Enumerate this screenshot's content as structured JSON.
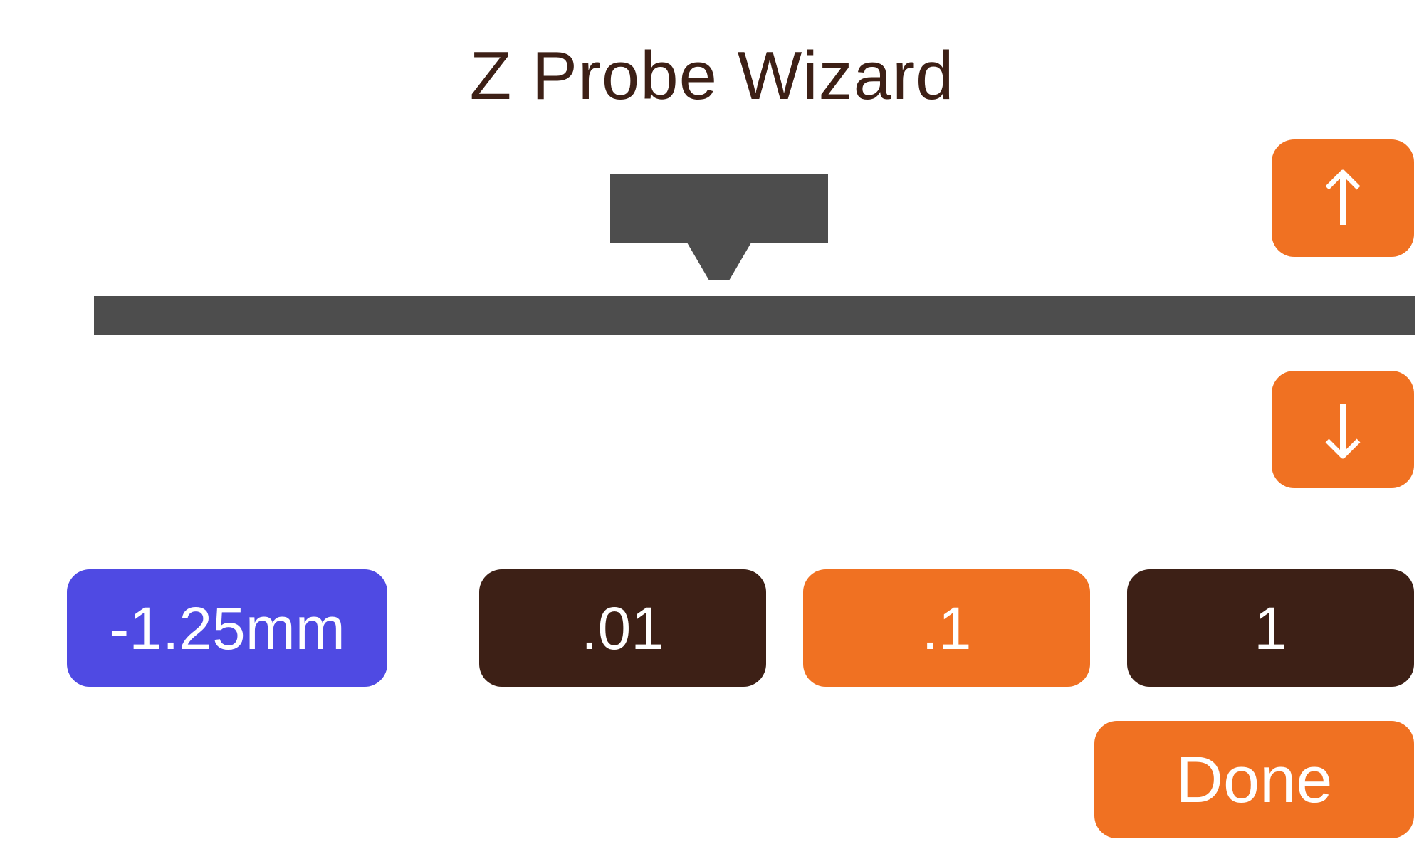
{
  "title": "Z Probe Wizard",
  "controls": {
    "up_icon": "arrow-up-icon",
    "down_icon": "arrow-down-icon"
  },
  "offset": {
    "value": "-1.25mm"
  },
  "steps": [
    {
      "label": ".01",
      "selected": false
    },
    {
      "label": ".1",
      "selected": true
    },
    {
      "label": "1",
      "selected": false
    }
  ],
  "done_label": "Done",
  "colors": {
    "accent": "#f07122",
    "dark": "#3d2016",
    "offset_blue": "#4f4ae3",
    "diagram_gray": "#4d4d4d",
    "background": "#ffffff"
  }
}
